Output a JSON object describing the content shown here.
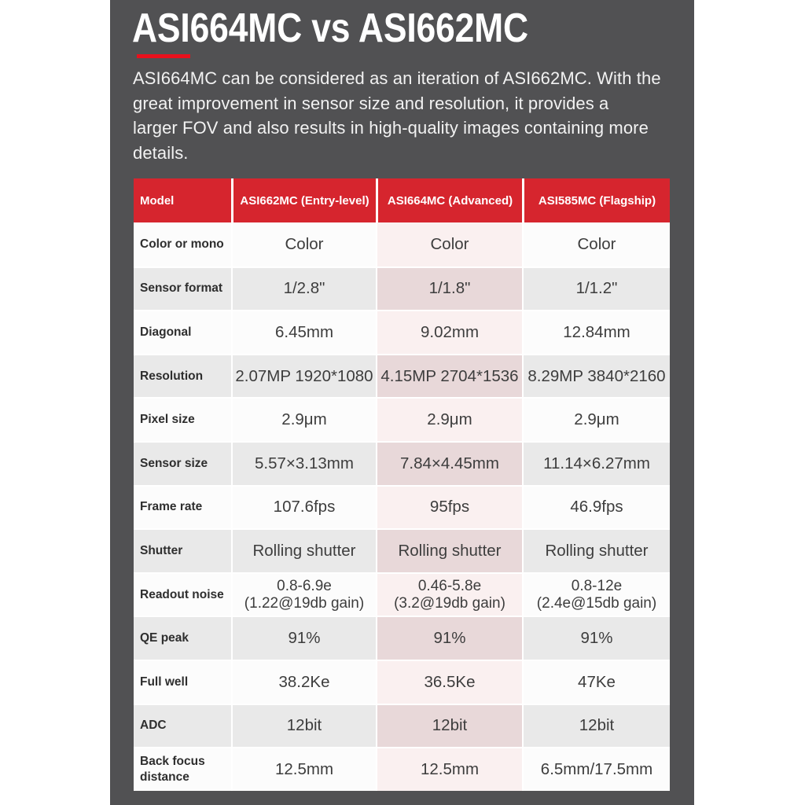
{
  "page": {
    "background": "#ffffff",
    "panel_color": "#515153"
  },
  "header": {
    "title": "ASI664MC vs ASI662MC",
    "underline_color": "#e8101c"
  },
  "intro": {
    "text": "ASI664MC can be considered as an iteration of ASI662MC. With the\ngreat improvement in sensor size and resolution, it provides a\nlarger FOV and also results in high-quality images containing more\ndetails."
  },
  "table": {
    "header_bg": "#d6252e",
    "highlight_column": "ASI664MC (Advanced)",
    "columns": [
      "Model",
      "ASI662MC (Entry-level)",
      "ASI664MC (Advanced)",
      "ASI585MC (Flagship)"
    ],
    "rows": [
      {
        "label": "Color or mono",
        "values": [
          "Color",
          "Color",
          "Color"
        ]
      },
      {
        "label": "Sensor format",
        "values": [
          "1/2.8\"",
          "1/1.8\"",
          "1/1.2\""
        ]
      },
      {
        "label": "Diagonal",
        "values": [
          "6.45mm",
          "9.02mm",
          "12.84mm"
        ]
      },
      {
        "label": "Resolution",
        "values": [
          "2.07MP 1920*1080",
          "4.15MP 2704*1536",
          "8.29MP 3840*2160"
        ]
      },
      {
        "label": "Pixel size",
        "values": [
          "2.9μm",
          "2.9μm",
          "2.9μm"
        ]
      },
      {
        "label": "Sensor size",
        "values": [
          "5.57×3.13mm",
          "7.84×4.45mm",
          "11.14×6.27mm"
        ]
      },
      {
        "label": "Frame rate",
        "values": [
          "107.6fps",
          "95fps",
          "46.9fps"
        ]
      },
      {
        "label": "Shutter",
        "values": [
          "Rolling shutter",
          "Rolling shutter",
          "Rolling shutter"
        ]
      },
      {
        "label": "Readout noise",
        "values": [
          "0.8-6.9e\n(1.22@19db gain)",
          "0.46-5.8e\n(3.2@19db gain)",
          "0.8-12e\n(2.4e@15db gain)"
        ]
      },
      {
        "label": "QE peak",
        "values": [
          "91%",
          "91%",
          "91%"
        ]
      },
      {
        "label": "Full well",
        "values": [
          "38.2Ke",
          "36.5Ke",
          "47Ke"
        ]
      },
      {
        "label": "ADC",
        "values": [
          "12bit",
          "12bit",
          "12bit"
        ]
      },
      {
        "label": "Back focus\ndistance",
        "values": [
          "12.5mm",
          "12.5mm",
          "6.5mm/17.5mm"
        ]
      }
    ]
  }
}
